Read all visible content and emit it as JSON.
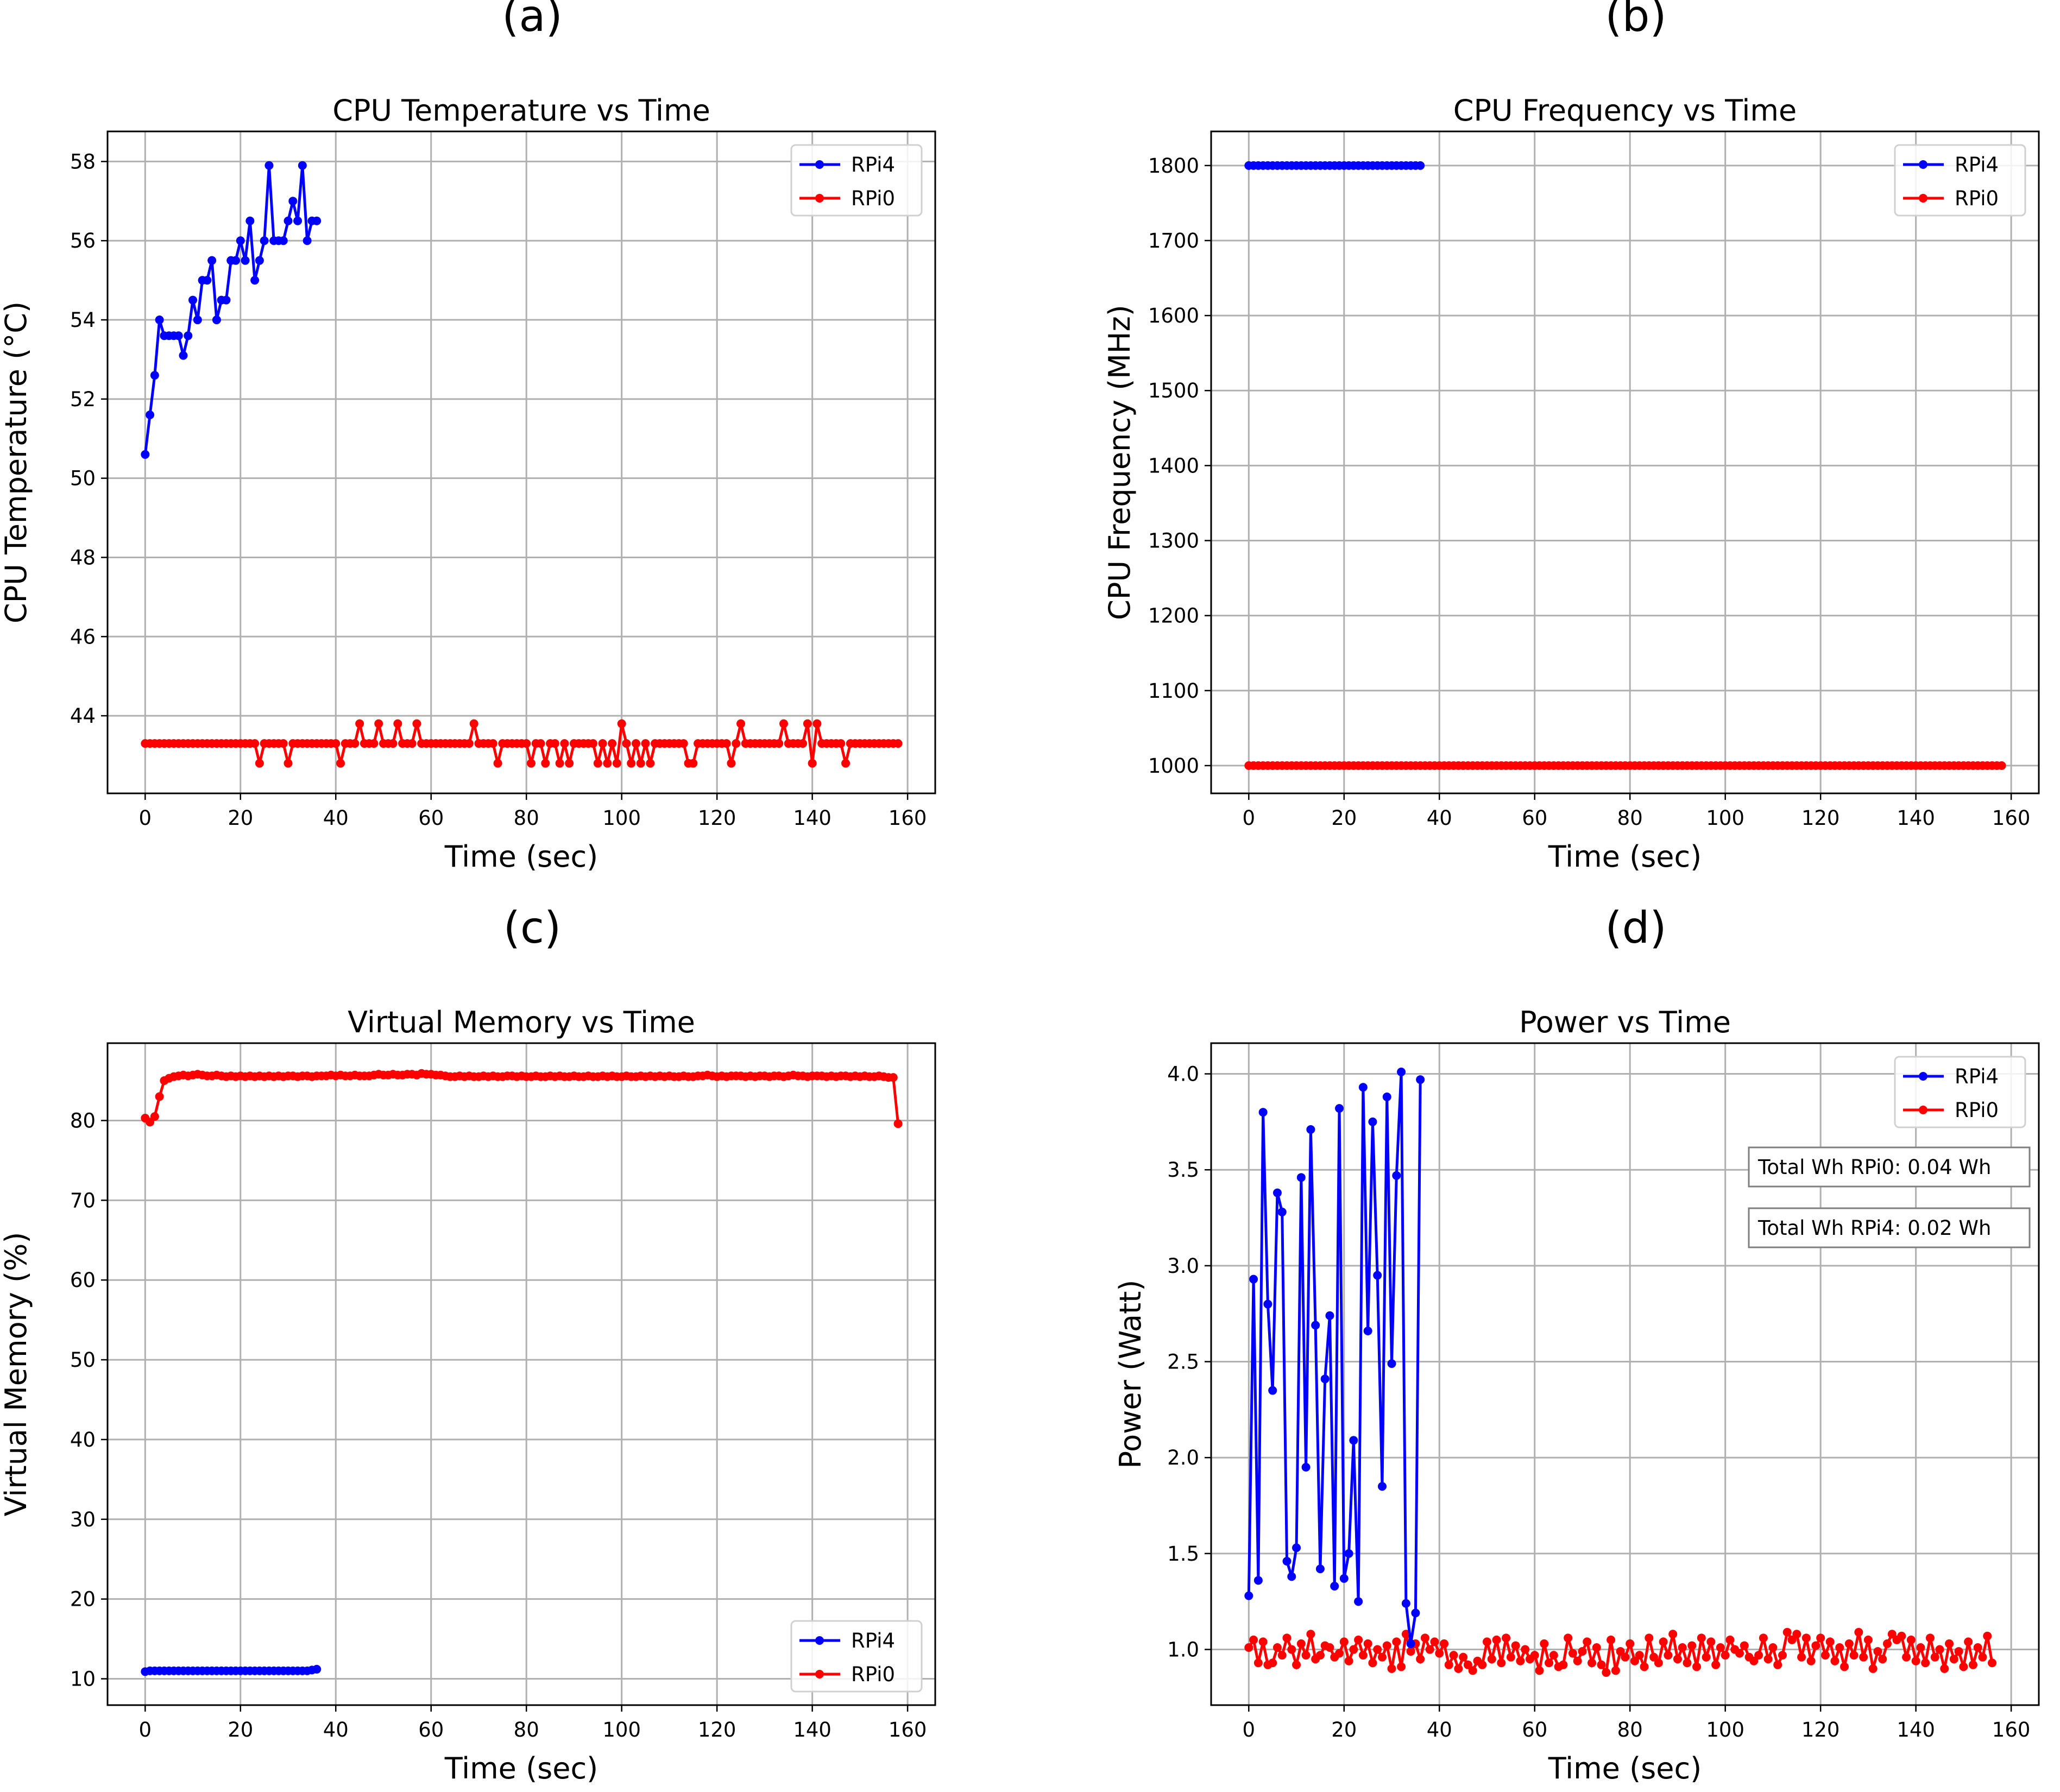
{
  "chart_data": [
    {
      "panel_label": "(a)",
      "type": "line",
      "title": "CPU Temperature vs Time",
      "xlabel": "Time (sec)",
      "ylabel": "CPU Temperature (°C)",
      "xlim": [
        -7.9,
        165.8
      ],
      "ylim": [
        42.04,
        58.76
      ],
      "xticks": [
        0,
        20,
        40,
        60,
        80,
        100,
        120,
        140,
        160
      ],
      "yticks": [
        44,
        46,
        48,
        50,
        52,
        54,
        56,
        58
      ],
      "grid": true,
      "legend": "top-right",
      "series": [
        {
          "name": "RPi4",
          "color": "#0000ff",
          "x_start": 0,
          "x_step": 1,
          "values": [
            50.6,
            51.6,
            52.6,
            54.0,
            53.6,
            53.6,
            53.6,
            53.6,
            53.1,
            53.6,
            54.5,
            54.0,
            55.0,
            55.0,
            55.5,
            54.0,
            54.5,
            54.5,
            55.5,
            55.5,
            56.0,
            55.5,
            56.5,
            55.0,
            55.5,
            56.0,
            57.9,
            56.0,
            56.0,
            56.0,
            56.5,
            57.0,
            56.5,
            57.9,
            56.0,
            56.5,
            56.5
          ]
        },
        {
          "name": "RPi0",
          "color": "#ff0000",
          "x_start": 0,
          "x_step": 1,
          "values": [
            43.3,
            43.3,
            43.3,
            43.3,
            43.3,
            43.3,
            43.3,
            43.3,
            43.3,
            43.3,
            43.3,
            43.3,
            43.3,
            43.3,
            43.3,
            43.3,
            43.3,
            43.3,
            43.3,
            43.3,
            43.3,
            43.3,
            43.3,
            43.3,
            42.8,
            43.3,
            43.3,
            43.3,
            43.3,
            43.3,
            42.8,
            43.3,
            43.3,
            43.3,
            43.3,
            43.3,
            43.3,
            43.3,
            43.3,
            43.3,
            43.3,
            42.8,
            43.3,
            43.3,
            43.3,
            43.8,
            43.3,
            43.3,
            43.3,
            43.8,
            43.3,
            43.3,
            43.3,
            43.8,
            43.3,
            43.3,
            43.3,
            43.8,
            43.3,
            43.3,
            43.3,
            43.3,
            43.3,
            43.3,
            43.3,
            43.3,
            43.3,
            43.3,
            43.3,
            43.8,
            43.3,
            43.3,
            43.3,
            43.3,
            42.8,
            43.3,
            43.3,
            43.3,
            43.3,
            43.3,
            43.3,
            42.8,
            43.3,
            43.3,
            42.8,
            43.3,
            43.3,
            42.8,
            43.3,
            42.8,
            43.3,
            43.3,
            43.3,
            43.3,
            43.3,
            42.8,
            43.3,
            42.8,
            43.3,
            42.8,
            43.8,
            43.3,
            42.8,
            43.3,
            42.8,
            43.3,
            42.8,
            43.3,
            43.3,
            43.3,
            43.3,
            43.3,
            43.3,
            43.3,
            42.8,
            42.8,
            43.3,
            43.3,
            43.3,
            43.3,
            43.3,
            43.3,
            43.3,
            42.8,
            43.3,
            43.8,
            43.3,
            43.3,
            43.3,
            43.3,
            43.3,
            43.3,
            43.3,
            43.3,
            43.8,
            43.3,
            43.3,
            43.3,
            43.3,
            43.8,
            42.8,
            43.8,
            43.3,
            43.3,
            43.3,
            43.3,
            43.3,
            42.8,
            43.3,
            43.3,
            43.3,
            43.3,
            43.3,
            43.3,
            43.3,
            43.3,
            43.3,
            43.3,
            43.3
          ]
        }
      ]
    },
    {
      "panel_label": "(b)",
      "type": "line",
      "title": "CPU Frequency vs Time",
      "xlabel": "Time (sec)",
      "ylabel": "CPU Frequency (MHz)",
      "xlim": [
        -7.9,
        165.8
      ],
      "ylim": [
        963,
        1845.5
      ],
      "xticks": [
        0,
        20,
        40,
        60,
        80,
        100,
        120,
        140,
        160
      ],
      "yticks": [
        1000,
        1100,
        1200,
        1300,
        1400,
        1500,
        1600,
        1700,
        1800
      ],
      "grid": true,
      "legend": "top-right",
      "series": [
        {
          "name": "RPi4",
          "color": "#0000ff",
          "x_start": 0,
          "x_step": 1,
          "count": 37,
          "constant": 1800
        },
        {
          "name": "RPi0",
          "color": "#ff0000",
          "x_start": 0,
          "x_step": 1,
          "count": 159,
          "constant": 1000
        }
      ]
    },
    {
      "panel_label": "(c)",
      "type": "line",
      "title": "Virtual Memory vs Time",
      "xlabel": "Time (sec)",
      "ylabel": "Virtual Memory (%)",
      "xlim": [
        -7.9,
        165.8
      ],
      "ylim": [
        6.7,
        89.7
      ],
      "xticks": [
        0,
        20,
        40,
        60,
        80,
        100,
        120,
        140,
        160
      ],
      "yticks": [
        10,
        20,
        30,
        40,
        50,
        60,
        70,
        80
      ],
      "grid": true,
      "legend": "bottom-right",
      "series": [
        {
          "name": "RPi4",
          "color": "#0000ff",
          "x_start": 0,
          "x_step": 1,
          "values": [
            10.9,
            11.0,
            11.0,
            11.0,
            11.0,
            11.0,
            11.0,
            11.0,
            11.0,
            11.0,
            11.0,
            11.0,
            11.0,
            11.0,
            11.0,
            11.0,
            11.0,
            11.0,
            11.0,
            11.0,
            11.0,
            11.0,
            11.0,
            11.0,
            11.0,
            11.0,
            11.0,
            11.0,
            11.0,
            11.0,
            11.0,
            11.0,
            11.0,
            11.0,
            11.0,
            11.1,
            11.2
          ]
        },
        {
          "name": "RPi0",
          "color": "#ff0000",
          "x_start": 0,
          "x_step": 1,
          "values": [
            80.3,
            79.8,
            80.5,
            83.0,
            85.0,
            85.3,
            85.5,
            85.6,
            85.7,
            85.6,
            85.7,
            85.8,
            85.7,
            85.6,
            85.6,
            85.7,
            85.6,
            85.5,
            85.6,
            85.5,
            85.6,
            85.5,
            85.6,
            85.5,
            85.6,
            85.5,
            85.6,
            85.5,
            85.6,
            85.5,
            85.6,
            85.6,
            85.5,
            85.6,
            85.6,
            85.5,
            85.6,
            85.6,
            85.6,
            85.7,
            85.6,
            85.7,
            85.6,
            85.6,
            85.7,
            85.6,
            85.6,
            85.6,
            85.7,
            85.8,
            85.7,
            85.7,
            85.8,
            85.7,
            85.7,
            85.8,
            85.8,
            85.7,
            85.9,
            85.8,
            85.8,
            85.7,
            85.7,
            85.6,
            85.5,
            85.5,
            85.6,
            85.5,
            85.6,
            85.5,
            85.5,
            85.6,
            85.5,
            85.6,
            85.5,
            85.5,
            85.6,
            85.6,
            85.5,
            85.6,
            85.5,
            85.5,
            85.6,
            85.5,
            85.5,
            85.6,
            85.5,
            85.6,
            85.5,
            85.5,
            85.6,
            85.5,
            85.5,
            85.6,
            85.5,
            85.5,
            85.6,
            85.5,
            85.6,
            85.5,
            85.5,
            85.6,
            85.5,
            85.5,
            85.6,
            85.5,
            85.6,
            85.5,
            85.6,
            85.5,
            85.6,
            85.5,
            85.5,
            85.6,
            85.5,
            85.5,
            85.6,
            85.6,
            85.7,
            85.6,
            85.5,
            85.6,
            85.5,
            85.6,
            85.6,
            85.6,
            85.5,
            85.6,
            85.5,
            85.6,
            85.6,
            85.5,
            85.6,
            85.6,
            85.5,
            85.6,
            85.7,
            85.6,
            85.6,
            85.5,
            85.6,
            85.6,
            85.6,
            85.5,
            85.6,
            85.5,
            85.6,
            85.6,
            85.5,
            85.6,
            85.5,
            85.6,
            85.5,
            85.5,
            85.6,
            85.5,
            85.4,
            85.4,
            79.6
          ]
        }
      ]
    },
    {
      "panel_label": "(d)",
      "type": "line",
      "title": "Power vs Time",
      "xlabel": "Time (sec)",
      "ylabel": "Power (Watt)",
      "xlim": [
        -7.9,
        165.8
      ],
      "ylim": [
        0.71,
        4.16
      ],
      "xticks": [
        0,
        20,
        40,
        60,
        80,
        100,
        120,
        140,
        160
      ],
      "yticks": [
        "1.0",
        "1.5",
        "2.0",
        "2.5",
        "3.0",
        "3.5",
        "4.0"
      ],
      "grid": true,
      "legend": "top-right",
      "annotations": [
        "Total Wh RPi0: 0.04 Wh",
        "Total Wh RPi4: 0.02 Wh"
      ],
      "series": [
        {
          "name": "RPi4",
          "color": "#0000ff",
          "x_start": 0,
          "x_step": 1,
          "values": [
            1.28,
            2.93,
            1.36,
            3.8,
            2.8,
            2.35,
            3.38,
            3.28,
            1.46,
            1.38,
            1.53,
            3.46,
            1.95,
            3.71,
            2.69,
            1.42,
            2.41,
            2.74,
            1.33,
            3.82,
            1.37,
            1.5,
            2.09,
            1.25,
            3.93,
            2.66,
            3.75,
            2.95,
            1.85,
            3.88,
            2.49,
            3.47,
            4.01,
            1.24,
            1.03,
            1.19,
            3.97
          ]
        },
        {
          "name": "RPi0",
          "color": "#ff0000",
          "x_start": 0,
          "x_step": 1,
          "values": [
            1.01,
            1.05,
            0.93,
            1.04,
            0.92,
            0.93,
            1.01,
            0.97,
            1.06,
            1.0,
            0.92,
            1.03,
            0.97,
            1.08,
            0.95,
            0.97,
            1.02,
            1.01,
            0.96,
            0.98,
            1.04,
            0.94,
            1.0,
            1.05,
            0.97,
            1.03,
            0.93,
            1.0,
            0.96,
            1.02,
            0.9,
            1.04,
            0.91,
            1.08,
            0.99,
            1.03,
            0.95,
            1.06,
            1.0,
            1.04,
            0.98,
            1.03,
            0.92,
            0.97,
            0.9,
            0.96,
            0.92,
            0.89,
            0.94,
            0.92,
            1.04,
            0.95,
            1.05,
            0.93,
            1.06,
            0.96,
            1.02,
            0.94,
            1.0,
            0.95,
            0.97,
            0.89,
            1.03,
            0.93,
            0.97,
            0.91,
            0.92,
            1.06,
            0.98,
            0.94,
            0.99,
            1.04,
            0.93,
            1.01,
            0.92,
            0.88,
            1.05,
            0.89,
            0.99,
            0.96,
            1.03,
            0.94,
            0.97,
            0.91,
            1.06,
            0.96,
            0.93,
            1.04,
            0.97,
            1.08,
            0.95,
            1.01,
            0.93,
            1.02,
            0.91,
            1.06,
            0.96,
            1.04,
            0.92,
            1.01,
            0.97,
            1.05,
            1.0,
            0.98,
            1.02,
            0.96,
            0.94,
            0.97,
            1.06,
            0.95,
            1.01,
            0.92,
            0.97,
            1.09,
            1.05,
            1.08,
            0.96,
            1.06,
            0.94,
            1.02,
            1.06,
            0.97,
            1.04,
            0.94,
            1.01,
            0.91,
            1.03,
            0.97,
            1.09,
            0.96,
            1.05,
            0.9,
            0.99,
            0.95,
            1.03,
            1.08,
            1.05,
            1.07,
            0.96,
            1.05,
            0.94,
            1.01,
            0.93,
            1.06,
            0.96,
            1.0,
            0.9,
            1.03,
            0.95,
            0.99,
            0.91,
            1.04,
            0.92,
            1.01,
            0.96,
            1.07,
            0.93
          ]
        }
      ]
    }
  ]
}
